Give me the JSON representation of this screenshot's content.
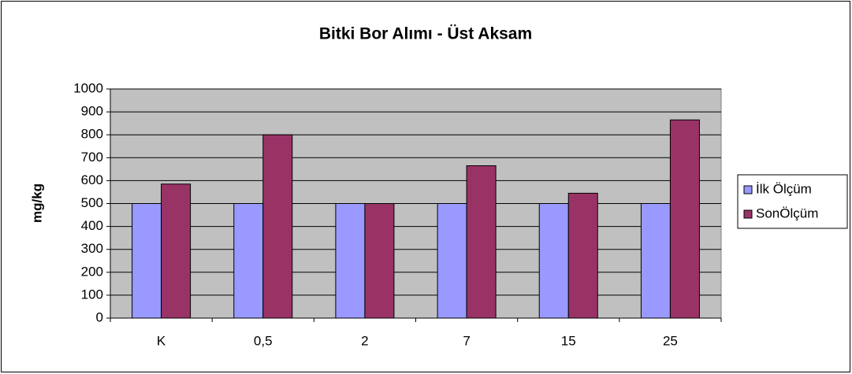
{
  "chart_data": {
    "type": "bar",
    "title": "Bitki Bor Alımı - Üst Aksam",
    "y_label": "mg/kg",
    "categories": [
      "K",
      "0,5",
      "2",
      "7",
      "15",
      "25"
    ],
    "series": [
      {
        "name": "İlk Ölçüm",
        "color": "#9999ff",
        "values": [
          500,
          500,
          500,
          500,
          500,
          500
        ]
      },
      {
        "name": "SonÖlçüm",
        "color": "#993366",
        "values": [
          585,
          800,
          500,
          665,
          545,
          865
        ]
      }
    ],
    "ylim": [
      0,
      1000
    ],
    "yticks": [
      0,
      100,
      200,
      300,
      400,
      500,
      600,
      700,
      800,
      900,
      1000
    ],
    "grid": true,
    "legend": "right"
  }
}
